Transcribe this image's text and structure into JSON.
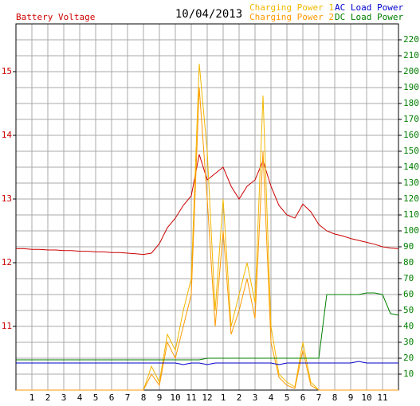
{
  "chart_data": {
    "type": "line",
    "title": "10/04/2013",
    "y_label": "Battery Voltage",
    "x": [
      0,
      0.5,
      1,
      1.5,
      2,
      2.5,
      3,
      3.5,
      4,
      4.5,
      5,
      5.5,
      6,
      6.5,
      7,
      7.5,
      8,
      8.5,
      9,
      9.5,
      10,
      10.5,
      11,
      11.5,
      12,
      12.5,
      13,
      13.5,
      14,
      14.5,
      15,
      15.5,
      16,
      16.5,
      17,
      17.5,
      18,
      18.5,
      19,
      19.5,
      20,
      20.5,
      21,
      21.5,
      22,
      22.5,
      23,
      23.5,
      24
    ],
    "xlim": [
      0,
      24
    ],
    "xticks": [
      1,
      2,
      3,
      4,
      5,
      6,
      7,
      8,
      9,
      10,
      11,
      12,
      {
        "value": 13,
        "label": "1"
      },
      {
        "value": 14,
        "label": "2"
      },
      {
        "value": 15,
        "label": "3"
      },
      {
        "value": 16,
        "label": "4"
      },
      {
        "value": 17,
        "label": "5"
      },
      {
        "value": 18,
        "label": "6"
      },
      {
        "value": 19,
        "label": "7"
      },
      {
        "value": 20,
        "label": "8"
      },
      {
        "value": 21,
        "label": "9"
      },
      {
        "value": 22,
        "label": "10"
      },
      {
        "value": 23,
        "label": "11"
      }
    ],
    "ylim": [
      10,
      15.75
    ],
    "yticks": [
      11,
      12,
      13,
      14,
      15
    ],
    "y2lim": [
      0,
      230
    ],
    "y2ticks": [
      10,
      20,
      30,
      40,
      50,
      60,
      70,
      80,
      90,
      100,
      110,
      120,
      130,
      140,
      150,
      160,
      170,
      180,
      190,
      200,
      210,
      220
    ],
    "grid": true,
    "series": [
      {
        "name": "Battery Voltage",
        "color": "#cc0000",
        "values": [
          12.22,
          12.22,
          12.21,
          12.21,
          12.2,
          12.2,
          12.19,
          12.19,
          12.18,
          12.18,
          12.17,
          12.17,
          12.16,
          12.16,
          12.15,
          12.14,
          12.13,
          12.15,
          12.3,
          12.55,
          12.7,
          12.9,
          13.05,
          13.7,
          13.3,
          13.4,
          13.5,
          13.2,
          13.0,
          13.2,
          13.3,
          13.6,
          13.2,
          12.9,
          12.75,
          12.7,
          12.92,
          12.8,
          12.6,
          12.5,
          12.45,
          12.42,
          12.38,
          12.35,
          12.32,
          12.29,
          12.25,
          12.23,
          12.22
        ]
      },
      {
        "name": "Charging Power 1",
        "color": "#f0b800",
        "axis": "y2",
        "values": [
          0,
          0,
          0,
          0,
          0,
          0,
          0,
          0,
          0,
          0,
          0,
          0,
          0,
          0,
          0,
          0,
          0,
          15,
          5,
          35,
          25,
          50,
          70,
          205,
          150,
          50,
          120,
          40,
          60,
          80,
          55,
          185,
          40,
          10,
          5,
          2,
          30,
          5,
          0,
          0,
          0,
          0,
          0,
          0,
          0,
          0,
          0,
          0,
          0
        ]
      },
      {
        "name": "Charging Power 2",
        "color": "#ff9900",
        "axis": "y2",
        "values": [
          0,
          0,
          0,
          0,
          0,
          0,
          0,
          0,
          0,
          0,
          0,
          0,
          0,
          0,
          0,
          0,
          0,
          10,
          3,
          30,
          20,
          40,
          60,
          190,
          120,
          40,
          100,
          35,
          50,
          70,
          45,
          150,
          30,
          8,
          3,
          1,
          25,
          3,
          0,
          0,
          0,
          0,
          0,
          0,
          0,
          0,
          0,
          0,
          0
        ]
      },
      {
        "name": "AC Load Power",
        "color": "#0000cc",
        "axis": "y2",
        "values": [
          17,
          17,
          17,
          17,
          17,
          17,
          17,
          17,
          17,
          17,
          17,
          17,
          17,
          17,
          17,
          17,
          17,
          17,
          17,
          17,
          17,
          16,
          17,
          17,
          16,
          17,
          17,
          17,
          17,
          17,
          17,
          17,
          17,
          16,
          17,
          17,
          17,
          17,
          17,
          17,
          17,
          17,
          17,
          18,
          17,
          17,
          17,
          17,
          17
        ]
      },
      {
        "name": "DC Load Power",
        "color": "#008000",
        "axis": "y2",
        "values": [
          19,
          19,
          19,
          19,
          19,
          19,
          19,
          19,
          19,
          19,
          19,
          19,
          19,
          19,
          19,
          19,
          19,
          19,
          19,
          19,
          19,
          19,
          19,
          19,
          20,
          20,
          20,
          20,
          20,
          20,
          20,
          20,
          20,
          20,
          20,
          20,
          20,
          20,
          20,
          60,
          60,
          60,
          60,
          60,
          61,
          61,
          60,
          48,
          47
        ]
      }
    ]
  }
}
